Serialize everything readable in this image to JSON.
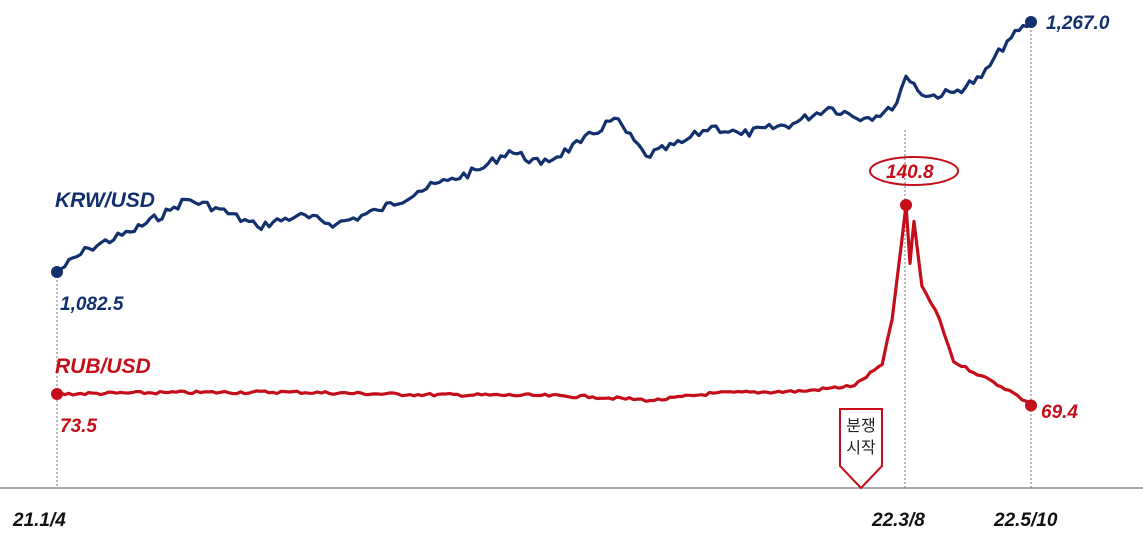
{
  "chart_data": {
    "type": "line",
    "x_ticks": [
      "21.1/4",
      "22.3/8",
      "22.5/10"
    ],
    "series": [
      {
        "name": "KRW/USD",
        "color": "#12306e",
        "start_label": "1,082.5",
        "end_label": "1,267.0",
        "points": [
          [
            "2021-01-04",
            1082.5
          ],
          [
            "2021-01-20",
            1100
          ],
          [
            "2021-02-10",
            1112
          ],
          [
            "2021-03-02",
            1128
          ],
          [
            "2021-03-10",
            1136
          ],
          [
            "2021-03-25",
            1130
          ],
          [
            "2021-04-15",
            1116
          ],
          [
            "2021-05-05",
            1124
          ],
          [
            "2021-05-25",
            1118
          ],
          [
            "2021-06-15",
            1128
          ],
          [
            "2021-07-05",
            1142
          ],
          [
            "2021-07-20",
            1150
          ],
          [
            "2021-08-05",
            1158
          ],
          [
            "2021-08-20",
            1172
          ],
          [
            "2021-09-05",
            1162
          ],
          [
            "2021-09-25",
            1178
          ],
          [
            "2021-10-12",
            1196
          ],
          [
            "2021-10-28",
            1168
          ],
          [
            "2021-11-15",
            1178
          ],
          [
            "2021-11-30",
            1190
          ],
          [
            "2021-12-15",
            1184
          ],
          [
            "2022-01-10",
            1192
          ],
          [
            "2022-01-28",
            1204
          ],
          [
            "2022-02-15",
            1196
          ],
          [
            "2022-03-01",
            1202
          ],
          [
            "2022-03-08",
            1227
          ],
          [
            "2022-03-18",
            1212
          ],
          [
            "2022-04-01",
            1215
          ],
          [
            "2022-04-15",
            1226
          ],
          [
            "2022-04-28",
            1253
          ],
          [
            "2022-05-10",
            1267.0
          ]
        ]
      },
      {
        "name": "RUB/USD",
        "color": "#c40f1a",
        "start_label": "73.5",
        "end_label": "69.4",
        "peak_label": "140.8",
        "points": [
          [
            "2021-01-04",
            73.5
          ],
          [
            "2021-03-01",
            74
          ],
          [
            "2021-05-01",
            74.2
          ],
          [
            "2021-07-01",
            73.3
          ],
          [
            "2021-09-01",
            73.0
          ],
          [
            "2021-10-01",
            72.5
          ],
          [
            "2021-11-01",
            71.2
          ],
          [
            "2021-12-01",
            73.8
          ],
          [
            "2022-01-15",
            74.5
          ],
          [
            "2022-02-10",
            76.5
          ],
          [
            "2022-02-24",
            84
          ],
          [
            "2022-03-01",
            100
          ],
          [
            "2022-03-08",
            140.8
          ],
          [
            "2022-03-10",
            120
          ],
          [
            "2022-03-12",
            135
          ],
          [
            "2022-03-16",
            112
          ],
          [
            "2022-03-25",
            100
          ],
          [
            "2022-04-01",
            85
          ],
          [
            "2022-04-15",
            80
          ],
          [
            "2022-05-01",
            74
          ],
          [
            "2022-05-10",
            69.4
          ]
        ]
      }
    ],
    "annotation": {
      "text_line1": "분쟁",
      "text_line2": "시작",
      "date": "2022-02-24"
    }
  }
}
